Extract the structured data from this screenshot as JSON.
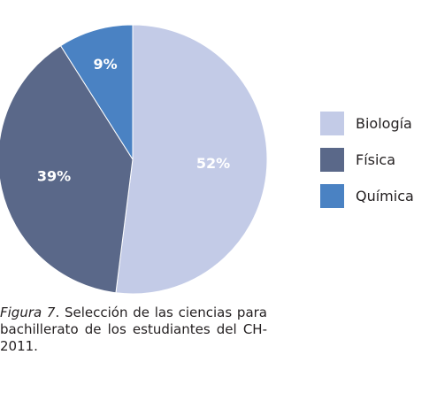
{
  "chart_data": {
    "type": "pie",
    "title": "",
    "categories": [
      "Biología",
      "Física",
      "Química"
    ],
    "values": [
      52,
      39,
      9
    ],
    "labels": [
      "52%",
      "39%",
      "9%"
    ],
    "colors": [
      "#c3cbe7",
      "#5a6889",
      "#4a82c3"
    ],
    "legend_position": "right",
    "start": "top",
    "direction": "clockwise"
  },
  "caption": {
    "figure_label": "Figura 7",
    "text": ". Selección de las ciencias para bachillerato de los estudiantes del CH-2011."
  }
}
